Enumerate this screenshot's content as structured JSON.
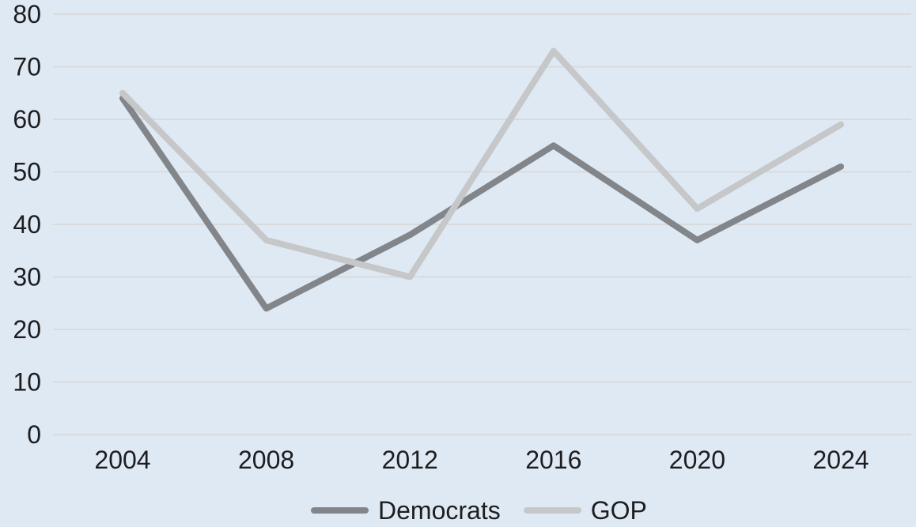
{
  "chart_data": {
    "type": "line",
    "title": "",
    "xlabel": "",
    "ylabel": "",
    "categories": [
      "2004",
      "2008",
      "2012",
      "2016",
      "2020",
      "2024"
    ],
    "series": [
      {
        "name": "Democrats",
        "values": [
          64,
          24,
          38,
          55,
          37,
          51
        ],
        "color": "#82868a"
      },
      {
        "name": "GOP",
        "values": [
          65,
          37,
          30,
          73,
          43,
          59
        ],
        "color": "#c5c7c9"
      }
    ],
    "ylim": [
      0,
      80
    ],
    "yticks": [
      0,
      10,
      20,
      30,
      40,
      50,
      60,
      70,
      80
    ],
    "grid": "horizontal",
    "legend_position": "bottom",
    "line_width": 8
  },
  "colors": {
    "background": "#dfe9f4",
    "gridline": "#d8dadc",
    "tick_text": "#1d1d1f"
  }
}
